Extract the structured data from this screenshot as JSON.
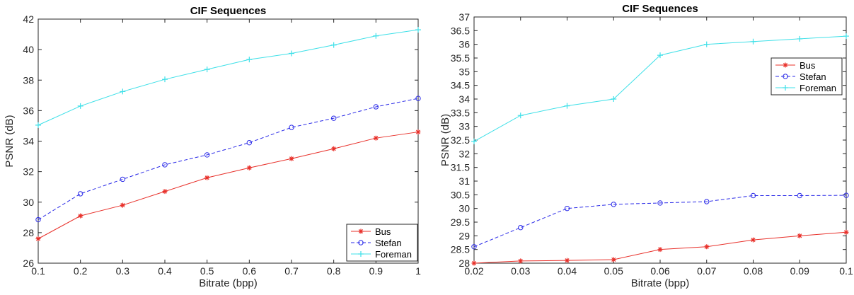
{
  "chart_data": [
    {
      "type": "line",
      "title": "CIF Sequences",
      "xlabel": "Bitrate (bpp)",
      "ylabel": "PSNR (dB)",
      "xlim": [
        0.1,
        1
      ],
      "ylim": [
        26,
        42
      ],
      "x": [
        0.1,
        0.2,
        0.3,
        0.4,
        0.5,
        0.6,
        0.7,
        0.8,
        0.9,
        1.0
      ],
      "xticks": [
        "0.1",
        "0.2",
        "0.3",
        "0.4",
        "0.5",
        "0.6",
        "0.7",
        "0.8",
        "0.9",
        "1"
      ],
      "yticks": [
        "26",
        "28",
        "30",
        "32",
        "34",
        "36",
        "38",
        "40",
        "42"
      ],
      "ytick_values": [
        26,
        28,
        30,
        32,
        34,
        36,
        38,
        40,
        42
      ],
      "grid": false,
      "legend_position": "bottom-right",
      "series": [
        {
          "name": "Bus",
          "color": "#e8302a",
          "marker": "asterisk",
          "dash": "solid",
          "values": [
            27.6,
            29.1,
            29.8,
            30.7,
            31.6,
            32.25,
            32.85,
            33.5,
            34.2,
            34.6
          ]
        },
        {
          "name": "Stefan",
          "color": "#2a2ae8",
          "marker": "circle",
          "dash": "dashed",
          "values": [
            28.85,
            30.55,
            31.5,
            32.45,
            33.1,
            33.9,
            34.9,
            35.5,
            36.25,
            36.8
          ]
        },
        {
          "name": "Foreman",
          "color": "#3ee0e8",
          "marker": "plus",
          "dash": "solid",
          "values": [
            35.05,
            36.3,
            37.25,
            38.05,
            38.7,
            39.35,
            39.75,
            40.3,
            40.9,
            41.3
          ]
        }
      ]
    },
    {
      "type": "line",
      "title": "CIF Sequences",
      "xlabel": "Bitrate (bpp)",
      "ylabel": "PSNR (dB)",
      "xlim": [
        0.02,
        0.1
      ],
      "ylim": [
        28,
        37
      ],
      "x": [
        0.02,
        0.03,
        0.04,
        0.05,
        0.06,
        0.07,
        0.08,
        0.09,
        0.1
      ],
      "xticks": [
        "0.02",
        "0.03",
        "0.04",
        "0.05",
        "0.06",
        "0.07",
        "0.08",
        "0.09",
        "0.1"
      ],
      "yticks": [
        "28",
        "28.5",
        "29",
        "29.5",
        "30",
        "30.5",
        "31",
        "31.5",
        "32",
        "32.5",
        "33",
        "33.5",
        "34",
        "34.5",
        "35",
        "35.5",
        "36",
        "36.5",
        "37"
      ],
      "ytick_values": [
        28,
        28.5,
        29,
        29.5,
        30,
        30.5,
        31,
        31.5,
        32,
        32.5,
        33,
        33.5,
        34,
        34.5,
        35,
        35.5,
        36,
        36.5,
        37
      ],
      "grid": false,
      "legend_position": "top-right",
      "series": [
        {
          "name": "Bus",
          "color": "#e8302a",
          "marker": "asterisk",
          "dash": "solid",
          "values": [
            28.0,
            28.08,
            28.1,
            28.13,
            28.5,
            28.6,
            28.85,
            29.0,
            29.13
          ]
        },
        {
          "name": "Stefan",
          "color": "#2a2ae8",
          "marker": "circle",
          "dash": "dashed",
          "values": [
            28.6,
            29.3,
            30.0,
            30.15,
            30.2,
            30.25,
            30.47,
            30.47,
            30.48
          ]
        },
        {
          "name": "Foreman",
          "color": "#3ee0e8",
          "marker": "plus",
          "dash": "solid",
          "values": [
            32.45,
            33.4,
            33.75,
            34.0,
            35.6,
            36.0,
            36.1,
            36.2,
            36.3
          ]
        }
      ]
    }
  ]
}
